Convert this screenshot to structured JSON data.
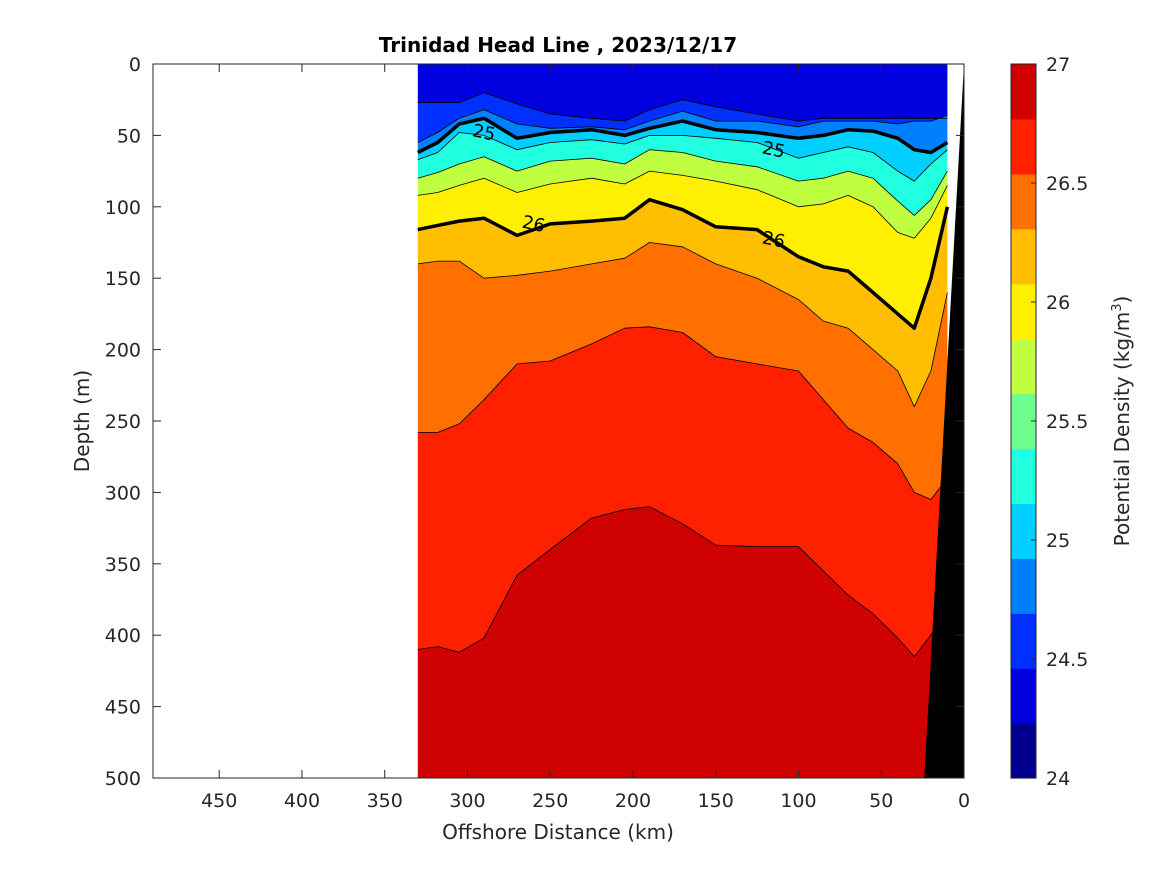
{
  "chart_data": {
    "type": "contourf",
    "title": "Trinidad Head Line , 2023/12/17",
    "xlabel": "Offshore Distance (km)",
    "ylabel": "Depth (m)",
    "xlim": [
      490,
      0
    ],
    "ylim": [
      0,
      500
    ],
    "x_reversed": true,
    "y_reversed": true,
    "x_ticks": [
      450,
      400,
      350,
      300,
      250,
      200,
      150,
      100,
      50,
      0
    ],
    "y_ticks": [
      0,
      50,
      100,
      150,
      200,
      250,
      300,
      350,
      400,
      450,
      500
    ],
    "colorbar": {
      "label": "Potential Density (kg/m",
      "label_superscript": "3",
      "label_suffix": ")",
      "range": [
        24,
        27
      ],
      "ticks": [
        "24",
        "24.5",
        "25",
        "25.5",
        "26",
        "26.5",
        "27"
      ],
      "colors": [
        "#00008f",
        "#0000df",
        "#0030ff",
        "#0080ff",
        "#00cfff",
        "#20ffdf",
        "#70ff8f",
        "#bfff40",
        "#ffef00",
        "#ffbf00",
        "#ff7000",
        "#ff2000",
        "#cf0000"
      ]
    },
    "data_extent_km": [
      330,
      10
    ],
    "station_distances_km": [
      330,
      318,
      305,
      290,
      270,
      250,
      225,
      205,
      190,
      170,
      150,
      125,
      100,
      85,
      70,
      55,
      40,
      30,
      20,
      10
    ],
    "isopycnal_depths_m": {
      "24.50": [
        27,
        27,
        27,
        20,
        28,
        35,
        38,
        40,
        32,
        25,
        30,
        35,
        40,
        38,
        38,
        38,
        38,
        38,
        38,
        38
      ],
      "24.75": [
        55,
        48,
        38,
        32,
        42,
        45,
        44,
        46,
        40,
        33,
        40,
        40,
        44,
        40,
        40,
        40,
        42,
        40,
        40,
        36
      ],
      "25.00": [
        62,
        55,
        42,
        38,
        52,
        48,
        46,
        50,
        45,
        40,
        46,
        48,
        52,
        50,
        46,
        47,
        52,
        60,
        62,
        55
      ],
      "25.25": [
        67,
        62,
        48,
        50,
        60,
        55,
        53,
        56,
        50,
        50,
        52,
        55,
        66,
        62,
        58,
        62,
        75,
        82,
        70,
        60
      ],
      "25.50": [
        80,
        76,
        70,
        65,
        75,
        68,
        66,
        70,
        60,
        62,
        68,
        72,
        82,
        80,
        75,
        80,
        96,
        106,
        95,
        75
      ],
      "25.75": [
        92,
        90,
        85,
        80,
        90,
        84,
        80,
        84,
        75,
        78,
        82,
        88,
        100,
        98,
        92,
        100,
        118,
        122,
        108,
        85
      ],
      "26.00": [
        116,
        113,
        110,
        108,
        120,
        112,
        110,
        108,
        95,
        102,
        114,
        116,
        135,
        142,
        145,
        160,
        175,
        185,
        150,
        100
      ],
      "26.25": [
        140,
        138,
        138,
        150,
        148,
        145,
        140,
        136,
        125,
        128,
        140,
        150,
        165,
        180,
        185,
        200,
        215,
        240,
        215,
        160
      ],
      "26.50": [
        258,
        258,
        252,
        235,
        210,
        208,
        196,
        185,
        184,
        188,
        205,
        210,
        215,
        235,
        255,
        265,
        280,
        300,
        305,
        290
      ],
      "26.75": [
        410,
        408,
        412,
        402,
        358,
        340,
        318,
        312,
        310,
        322,
        337,
        338,
        338,
        355,
        372,
        385,
        402,
        415,
        400,
        380
      ]
    },
    "bold_contours": [
      25,
      26
    ],
    "contour_labels": [
      {
        "text": "25",
        "x_km": 290,
        "depth_m": 48
      },
      {
        "text": "25",
        "x_km": 115,
        "depth_m": 60
      },
      {
        "text": "26",
        "x_km": 260,
        "depth_m": 112
      },
      {
        "text": "26",
        "x_km": 115,
        "depth_m": 123
      }
    ],
    "bathymetry": {
      "color": "#000000",
      "surface_x_km": 0,
      "bottom_x_km": 24
    }
  }
}
